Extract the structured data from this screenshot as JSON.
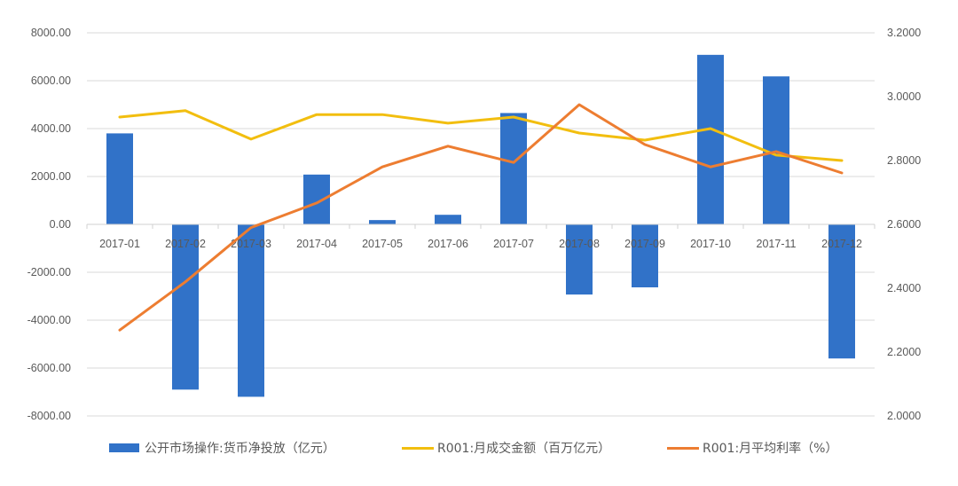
{
  "chart_data": {
    "type": "bar+line",
    "title": "",
    "categories": [
      "2017-01",
      "2017-02",
      "2017-03",
      "2017-04",
      "2017-05",
      "2017-06",
      "2017-07",
      "2017-08",
      "2017-09",
      "2017-10",
      "2017-11",
      "2017-12"
    ],
    "series": [
      {
        "name": "公开市场操作:货币净投放（亿元）",
        "type": "bar",
        "axis": "left",
        "color": "#3172C8",
        "values": [
          3800,
          -6900,
          -7200,
          2080,
          180,
          400,
          4650,
          -2930,
          -2630,
          7080,
          6180,
          -5600
        ]
      },
      {
        "name": "R001:月成交金额（百万亿元）",
        "type": "line",
        "axis": "right",
        "color": "#F2BE0F",
        "values": [
          2.936,
          2.956,
          2.867,
          2.944,
          2.944,
          2.917,
          2.936,
          2.886,
          2.864,
          2.9,
          2.817,
          2.8
        ]
      },
      {
        "name": "R001:月平均利率（%）",
        "type": "line",
        "axis": "right",
        "color": "#ED7D31",
        "values": [
          2.269,
          2.42,
          2.59,
          2.667,
          2.78,
          2.845,
          2.794,
          2.975,
          2.85,
          2.78,
          2.828,
          2.761
        ]
      }
    ],
    "left_axis": {
      "ylim": [
        -8000,
        8000
      ],
      "ticks": [
        "8000.00",
        "6000.00",
        "4000.00",
        "2000.00",
        "0.00",
        "-2000.00",
        "-4000.00",
        "-6000.00",
        "-8000.00"
      ]
    },
    "right_axis": {
      "ylim": [
        2.0,
        3.2
      ],
      "ticks": [
        "3.2000",
        "3.0000",
        "2.8000",
        "2.6000",
        "2.4000",
        "2.2000",
        "2.0000"
      ]
    },
    "xlabel": "",
    "ylabel": "",
    "grid": true,
    "legend_position": "bottom"
  },
  "legend": {
    "items": [
      {
        "label": "公开市场操作:货币净投放（亿元）"
      },
      {
        "label": "R001:月成交金额（百万亿元）"
      },
      {
        "label": "R001:月平均利率（%）"
      }
    ]
  }
}
